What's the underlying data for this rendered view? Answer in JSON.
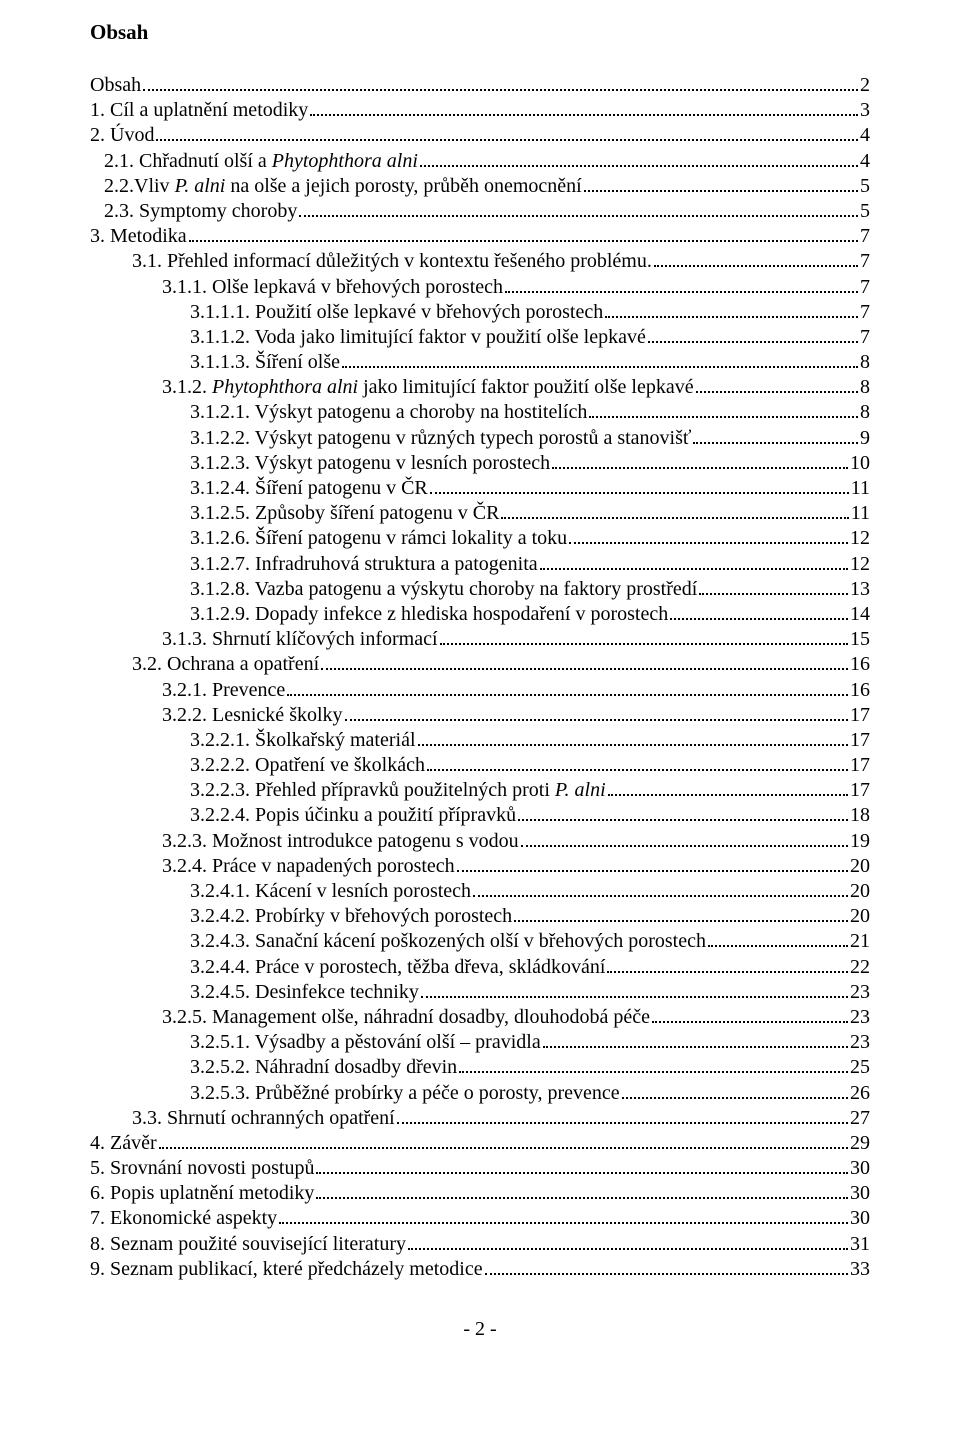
{
  "title": "Obsah",
  "footer": "- 2 -",
  "toc": [
    {
      "indent": 0,
      "label": "Obsah",
      "page": "2"
    },
    {
      "indent": 0,
      "label": "1. Cíl a uplatnění metodiky",
      "page": "3"
    },
    {
      "indent": 0,
      "label": "2. Úvod",
      "page": "4"
    },
    {
      "indent": 1,
      "label": "2.1. Chřadnutí olší a Phytophthora alni",
      "page": "4",
      "italic_phrase": "Phytophthora alni"
    },
    {
      "indent": 1,
      "label": "2.2.Vliv P. alni na olše a jejich porosty, průběh onemocnění",
      "page": "5",
      "italic_phrase": "P. alni"
    },
    {
      "indent": 1,
      "label": "2.3. Symptomy choroby",
      "page": "5"
    },
    {
      "indent": 0,
      "label": "3. Metodika",
      "page": "7"
    },
    {
      "indent": 2,
      "label": "3.1. Přehled informací důležitých v kontextu řešeného problému.",
      "page": "7"
    },
    {
      "indent": 3,
      "label": "3.1.1. Olše lepkavá v břehových porostech",
      "page": "7"
    },
    {
      "indent": 4,
      "label": "3.1.1.1. Použití olše lepkavé v břehových porostech",
      "page": "7"
    },
    {
      "indent": 4,
      "label": "3.1.1.2. Voda jako limitující faktor v použití olše lepkavé",
      "page": "7"
    },
    {
      "indent": 4,
      "label": "3.1.1.3. Šíření olše",
      "page": "8"
    },
    {
      "indent": 3,
      "label": "3.1.2. Phytophthora alni jako limitující faktor použití olše lepkavé",
      "page": "8",
      "italic_phrase": "Phytophthora alni"
    },
    {
      "indent": 4,
      "label": "3.1.2.1. Výskyt patogenu a choroby na hostitelích",
      "page": "8"
    },
    {
      "indent": 4,
      "label": "3.1.2.2. Výskyt patogenu v různých typech porostů a stanovišť",
      "page": "9"
    },
    {
      "indent": 4,
      "label": "3.1.2.3. Výskyt patogenu v lesních porostech",
      "page": "10"
    },
    {
      "indent": 4,
      "label": "3.1.2.4. Šíření patogenu v ČR",
      "page": "11"
    },
    {
      "indent": 4,
      "label": "3.1.2.5. Způsoby šíření patogenu v ČR",
      "page": "11"
    },
    {
      "indent": 4,
      "label": "3.1.2.6. Šíření patogenu v rámci lokality a toku",
      "page": "12"
    },
    {
      "indent": 4,
      "label": "3.1.2.7. Infradruhová struktura a patogenita",
      "page": "12"
    },
    {
      "indent": 4,
      "label": "3.1.2.8. Vazba patogenu a výskytu choroby na faktory prostředí",
      "page": "13"
    },
    {
      "indent": 4,
      "label": "3.1.2.9. Dopady infekce z hlediska hospodaření v porostech",
      "page": "14"
    },
    {
      "indent": 3,
      "label": "3.1.3. Shrnutí klíčových informací",
      "page": "15"
    },
    {
      "indent": 2,
      "label": "3.2. Ochrana a opatření",
      "page": "16"
    },
    {
      "indent": 3,
      "label": "3.2.1. Prevence",
      "page": "16"
    },
    {
      "indent": 3,
      "label": "3.2.2. Lesnické školky",
      "page": "17"
    },
    {
      "indent": 4,
      "label": "3.2.2.1. Školkařský materiál",
      "page": "17"
    },
    {
      "indent": 4,
      "label": "3.2.2.2. Opatření ve školkách",
      "page": "17"
    },
    {
      "indent": 4,
      "label": "3.2.2.3. Přehled přípravků použitelných proti P. alni",
      "page": "17",
      "italic_phrase": "P. alni"
    },
    {
      "indent": 4,
      "label": "3.2.2.4. Popis účinku a použití přípravků",
      "page": "18"
    },
    {
      "indent": 3,
      "label": "3.2.3. Možnost introdukce patogenu s vodou",
      "page": "19"
    },
    {
      "indent": 3,
      "label": "3.2.4. Práce v napadených porostech",
      "page": "20"
    },
    {
      "indent": 4,
      "label": "3.2.4.1. Kácení v lesních porostech",
      "page": "20"
    },
    {
      "indent": 4,
      "label": "3.2.4.2. Probírky v břehových porostech",
      "page": "20"
    },
    {
      "indent": 4,
      "label": "3.2.4.3. Sanační kácení poškozených olší v břehových porostech",
      "page": "21"
    },
    {
      "indent": 4,
      "label": "3.2.4.4. Práce v porostech, těžba dřeva, skládkování",
      "page": "22"
    },
    {
      "indent": 4,
      "label": "3.2.4.5. Desinfekce techniky",
      "page": "23"
    },
    {
      "indent": 3,
      "label": "3.2.5. Management olše, náhradní dosadby, dlouhodobá péče",
      "page": "23"
    },
    {
      "indent": 4,
      "label": "3.2.5.1. Výsadby a pěstování olší – pravidla",
      "page": "23"
    },
    {
      "indent": 4,
      "label": "3.2.5.2. Náhradní dosadby dřevin",
      "page": "25"
    },
    {
      "indent": 4,
      "label": "3.2.5.3. Průběžné probírky a péče o porosty, prevence",
      "page": "26"
    },
    {
      "indent": 2,
      "label": "3.3. Shrnutí ochranných opatření",
      "page": "27"
    },
    {
      "indent": 0,
      "label": "4. Závěr",
      "page": "29"
    },
    {
      "indent": 0,
      "label": "5. Srovnání novosti postupů",
      "page": "30"
    },
    {
      "indent": 0,
      "label": "6. Popis uplatnění metodiky",
      "page": "30"
    },
    {
      "indent": 0,
      "label": "7. Ekonomické aspekty",
      "page": "30"
    },
    {
      "indent": 0,
      "label": "8. Seznam použité související literatury",
      "page": "31"
    },
    {
      "indent": 0,
      "label": "9. Seznam publikací, které předcházely metodice",
      "page": "33"
    }
  ]
}
